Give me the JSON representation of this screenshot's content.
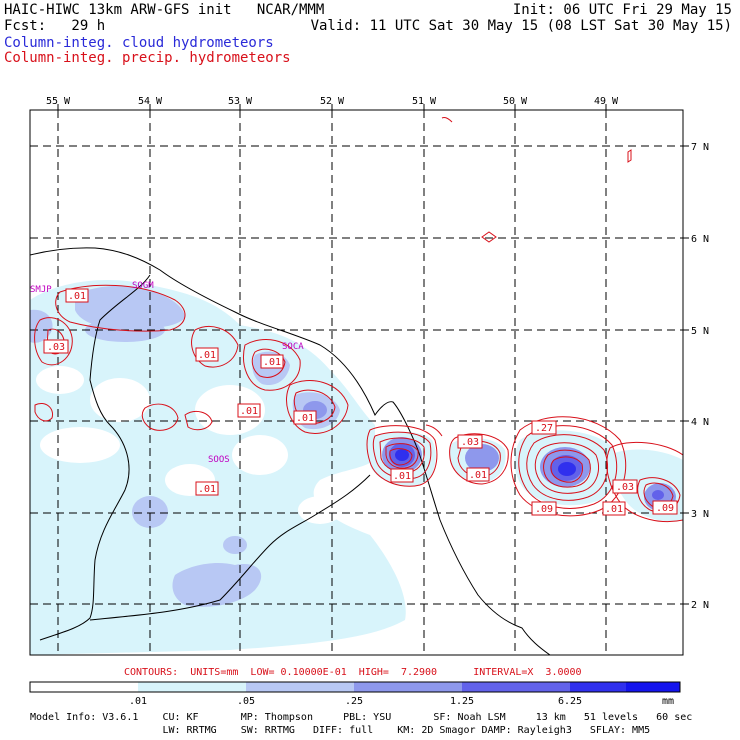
{
  "header": {
    "line1_left": "HAIC-HIWC 13km ARW-GFS init   NCAR/MMM",
    "line1_right": "Init: 06 UTC Fri 29 May 15",
    "line2_left": "Fcst:   29 h",
    "line2_right": "Valid: 11 UTC Sat 30 May 15 (08 LST Sat 30 May 15)",
    "legend_cloud": "Column-integ. cloud hydrometeors",
    "legend_precip": "Column-integ. precip. hydrometeors"
  },
  "colors": {
    "cloud_text": "#2a2ad8",
    "precip_text": "#d8101a",
    "contour": "#d8101a",
    "station": "#c000c0"
  },
  "longitude_labels": [
    "55 W",
    "54 W",
    "53 W",
    "52 W",
    "51 W",
    "50 W",
    "49 W"
  ],
  "latitude_labels": [
    "7 N",
    "6 N",
    "5 N",
    "4 N",
    "3 N",
    "2 N"
  ],
  "stations": [
    "SMJP",
    "SOGM",
    "SOCA",
    "SOOS"
  ],
  "contour_labels": [
    ".01",
    ".01",
    ".03",
    ".01",
    ".01",
    ".01",
    ".01",
    ".03",
    ".01",
    ".01",
    ".27",
    ".03",
    ".09",
    ".01",
    ".09"
  ],
  "contour_info": "CONTOURS:  UNITS=mm  LOW= 0.10000E-01  HIGH=  7.2900      INTERVAL=X  3.0000",
  "colorbar": {
    "ticks": [
      ".01",
      ".05",
      ".25",
      "1.25",
      "6.25"
    ],
    "units": "mm",
    "colors": [
      "#ffffff",
      "#d8f4fb",
      "#b8c8f4",
      "#8e98ec",
      "#6262ea",
      "#3030ee",
      "#1414ee"
    ]
  },
  "model_info": {
    "line1": "Model Info: V3.6.1    CU: KF       MP: Thompson     PBL: YSU       SF: Noah LSM     13 km   51 levels   60 sec",
    "line2": "                      LW: RRTMG    SW: RRTMG   DIFF: full    KM: 2D Smagor DAMP: Rayleigh3   SFLAY: MM5"
  }
}
